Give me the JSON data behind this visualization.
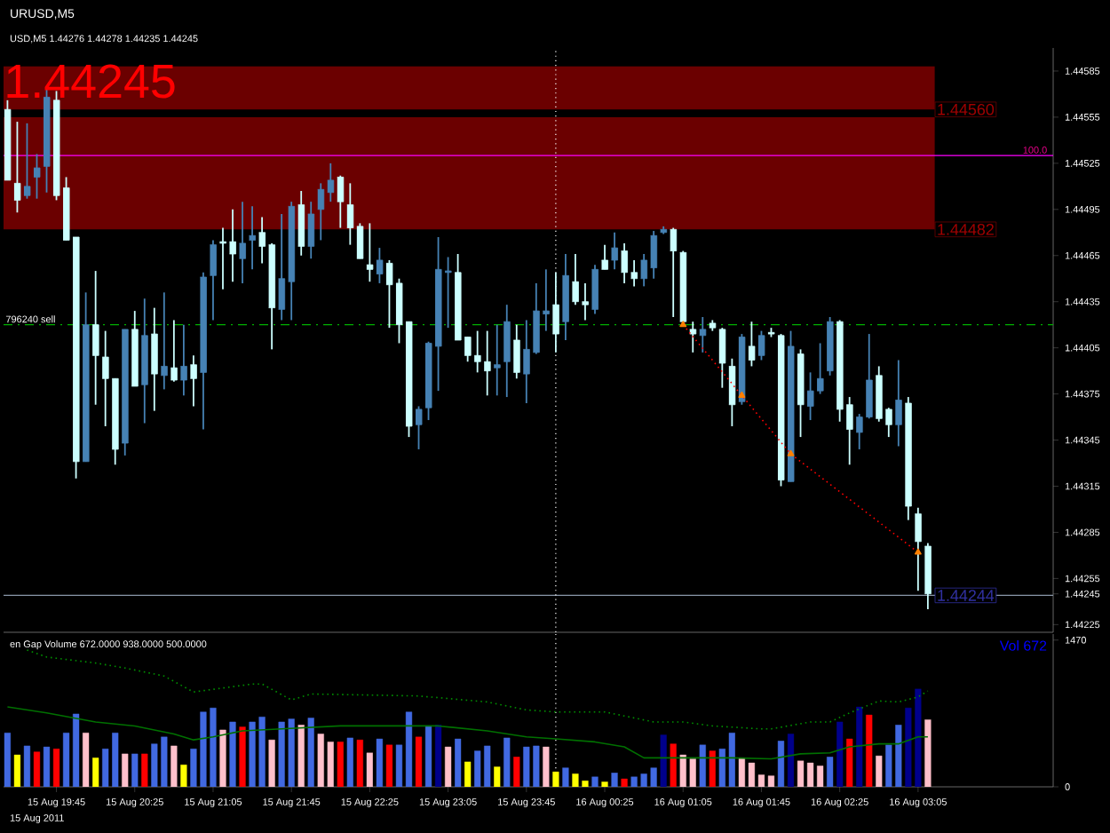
{
  "chart_data": [
    {
      "type": "candlestick",
      "title": "URUSD,M5",
      "subtitle": "USD,M5 1.44276 1.44278 1.44235 1.44245",
      "x": [
        "2011-08-15T19:20",
        "2011-08-15T19:25",
        "2011-08-15T19:30",
        "2011-08-15T19:35",
        "2011-08-15T19:40",
        "2011-08-15T19:45",
        "2011-08-15T19:50",
        "2011-08-15T19:55",
        "2011-08-15T20:00",
        "2011-08-15T20:05",
        "2011-08-15T20:10",
        "2011-08-15T20:15",
        "2011-08-15T20:20",
        "2011-08-15T20:25",
        "2011-08-15T20:30",
        "2011-08-15T20:35",
        "2011-08-15T20:40",
        "2011-08-15T20:45",
        "2011-08-15T20:50",
        "2011-08-15T20:55",
        "2011-08-15T21:00",
        "2011-08-15T21:05",
        "2011-08-15T21:10",
        "2011-08-15T21:15",
        "2011-08-15T21:20",
        "2011-08-15T21:25",
        "2011-08-15T21:30",
        "2011-08-15T21:35",
        "2011-08-15T21:40",
        "2011-08-15T21:45",
        "2011-08-15T21:50",
        "2011-08-15T21:55",
        "2011-08-15T22:00",
        "2011-08-15T22:05",
        "2011-08-15T22:10",
        "2011-08-15T22:15",
        "2011-08-15T22:20",
        "2011-08-15T22:25",
        "2011-08-15T22:30",
        "2011-08-15T22:35",
        "2011-08-15T22:40",
        "2011-08-15T22:45",
        "2011-08-15T22:50",
        "2011-08-15T22:55",
        "2011-08-15T23:00",
        "2011-08-15T23:05",
        "2011-08-15T23:10",
        "2011-08-15T23:15",
        "2011-08-15T23:20",
        "2011-08-15T23:25",
        "2011-08-15T23:30",
        "2011-08-15T23:35",
        "2011-08-15T23:40",
        "2011-08-15T23:45",
        "2011-08-15T23:50",
        "2011-08-15T23:55",
        "2011-08-16T00:00",
        "2011-08-16T00:05",
        "2011-08-16T00:10",
        "2011-08-16T00:15",
        "2011-08-16T00:20",
        "2011-08-16T00:25",
        "2011-08-16T00:30",
        "2011-08-16T00:35",
        "2011-08-16T00:40",
        "2011-08-16T00:45",
        "2011-08-16T00:50",
        "2011-08-16T00:55",
        "2011-08-16T01:00",
        "2011-08-16T01:05",
        "2011-08-16T01:10",
        "2011-08-16T01:15",
        "2011-08-16T01:20",
        "2011-08-16T01:25",
        "2011-08-16T01:30",
        "2011-08-16T01:35",
        "2011-08-16T01:40",
        "2011-08-16T01:45",
        "2011-08-16T01:50",
        "2011-08-16T01:55",
        "2011-08-16T02:00",
        "2011-08-16T02:05",
        "2011-08-16T02:10",
        "2011-08-16T02:15",
        "2011-08-16T02:20",
        "2011-08-16T02:25",
        "2011-08-16T02:30",
        "2011-08-16T02:35",
        "2011-08-16T02:40",
        "2011-08-16T02:45",
        "2011-08-16T02:50",
        "2011-08-16T02:55",
        "2011-08-16T03:00",
        "2011-08-16T03:05",
        "2011-08-16T03:10"
      ],
      "ohlc": [
        [
          1.4456,
          1.44566,
          1.44514,
          1.44514
        ],
        [
          1.44512,
          1.44552,
          1.44493,
          1.44501
        ],
        [
          1.44504,
          1.44551,
          1.44502,
          1.4451
        ],
        [
          1.44516,
          1.44531,
          1.44502,
          1.44522
        ],
        [
          1.44523,
          1.44574,
          1.44506,
          1.44568
        ],
        [
          1.44566,
          1.44572,
          1.44501,
          1.44504
        ],
        [
          1.44509,
          1.44516,
          1.44475,
          1.44475
        ],
        [
          1.44477,
          1.44477,
          1.4432,
          1.44331
        ],
        [
          1.44331,
          1.44441,
          1.44331,
          1.4442
        ],
        [
          1.4442,
          1.44455,
          1.44368,
          1.444
        ],
        [
          1.44399,
          1.44416,
          1.44354,
          1.44385
        ],
        [
          1.44385,
          1.44385,
          1.44329,
          1.44339
        ],
        [
          1.44343,
          1.44417,
          1.44335,
          1.44417
        ],
        [
          1.44417,
          1.44429,
          1.4438,
          1.4438
        ],
        [
          1.44381,
          1.44437,
          1.44356,
          1.44413
        ],
        [
          1.44414,
          1.44431,
          1.44364,
          1.44388
        ],
        [
          1.44387,
          1.44441,
          1.44378,
          1.44393
        ],
        [
          1.44392,
          1.44423,
          1.44383,
          1.44384
        ],
        [
          1.44384,
          1.4442,
          1.44374,
          1.44393
        ],
        [
          1.44394,
          1.444,
          1.44367,
          1.44385
        ],
        [
          1.44389,
          1.44454,
          1.44352,
          1.44451
        ],
        [
          1.44452,
          1.44475,
          1.44423,
          1.44472
        ],
        [
          1.44474,
          1.44483,
          1.44443,
          1.44473
        ],
        [
          1.44474,
          1.44495,
          1.44448,
          1.44466
        ],
        [
          1.44463,
          1.445,
          1.44447,
          1.44473
        ],
        [
          1.44475,
          1.44497,
          1.44456,
          1.44478
        ],
        [
          1.4448,
          1.4449,
          1.4446,
          1.44471
        ],
        [
          1.44472,
          1.44473,
          1.44404,
          1.44431
        ],
        [
          1.4443,
          1.44492,
          1.44423,
          1.4445
        ],
        [
          1.44448,
          1.445,
          1.44423,
          1.44497
        ],
        [
          1.44498,
          1.44507,
          1.44465,
          1.44471
        ],
        [
          1.44471,
          1.445,
          1.44463,
          1.44492
        ],
        [
          1.44495,
          1.44512,
          1.44475,
          1.44508
        ],
        [
          1.44506,
          1.44525,
          1.445,
          1.44514
        ],
        [
          1.44516,
          1.44517,
          1.44483,
          1.445
        ],
        [
          1.44498,
          1.44512,
          1.44472,
          1.44483
        ],
        [
          1.44484,
          1.44486,
          1.44463,
          1.44463
        ],
        [
          1.44459,
          1.44486,
          1.44448,
          1.44456
        ],
        [
          1.44453,
          1.4447,
          1.44447,
          1.44462
        ],
        [
          1.4446,
          1.44462,
          1.44418,
          1.44446
        ],
        [
          1.44447,
          1.4445,
          1.44408,
          1.4442
        ],
        [
          1.44422,
          1.44422,
          1.44347,
          1.44354
        ],
        [
          1.44355,
          1.44367,
          1.44339,
          1.44365
        ],
        [
          1.44366,
          1.44409,
          1.44358,
          1.44408
        ],
        [
          1.44406,
          1.44477,
          1.44377,
          1.44456
        ],
        [
          1.44454,
          1.44464,
          1.44418,
          1.44455
        ],
        [
          1.44454,
          1.44466,
          1.4441,
          1.4441
        ],
        [
          1.44412,
          1.44412,
          1.44396,
          1.444
        ],
        [
          1.444,
          1.44416,
          1.44389,
          1.44396
        ],
        [
          1.44396,
          1.44416,
          1.44374,
          1.4439
        ],
        [
          1.44392,
          1.4442,
          1.44374,
          1.44394
        ],
        [
          1.44396,
          1.44433,
          1.44373,
          1.44422
        ],
        [
          1.4441,
          1.4442,
          1.44385,
          1.44389
        ],
        [
          1.44388,
          1.44423,
          1.44369,
          1.44404
        ],
        [
          1.44402,
          1.44447,
          1.44401,
          1.44429
        ],
        [
          1.44427,
          1.44456,
          1.44416,
          1.44429
        ],
        [
          1.44433,
          1.44454,
          1.44402,
          1.44414
        ],
        [
          1.44422,
          1.44466,
          1.4441,
          1.44452
        ],
        [
          1.44448,
          1.44466,
          1.44433,
          1.44435
        ],
        [
          1.44435,
          1.44447,
          1.44423,
          1.44433
        ],
        [
          1.4443,
          1.44459,
          1.44427,
          1.44456
        ],
        [
          1.44462,
          1.44472,
          1.44456,
          1.44456
        ],
        [
          1.44462,
          1.4448,
          1.44456,
          1.4447
        ],
        [
          1.44468,
          1.44473,
          1.44447,
          1.44454
        ],
        [
          1.44454,
          1.44462,
          1.44445,
          1.4445
        ],
        [
          1.4445,
          1.44466,
          1.44445,
          1.44462
        ],
        [
          1.44457,
          1.44481,
          1.4445,
          1.44478
        ],
        [
          1.4448,
          1.44484,
          1.44479,
          1.44482
        ],
        [
          1.44482,
          1.44483,
          1.44425,
          1.44468
        ],
        [
          1.44467,
          1.44468,
          1.4442,
          1.44422
        ],
        [
          1.44417,
          1.44422,
          1.44402,
          1.44414
        ],
        [
          1.44413,
          1.44425,
          1.44402,
          1.44417
        ],
        [
          1.44421,
          1.44423,
          1.44416,
          1.44418
        ],
        [
          1.44417,
          1.44418,
          1.44379,
          1.44395
        ],
        [
          1.44393,
          1.44398,
          1.44354,
          1.44368
        ],
        [
          1.4437,
          1.44414,
          1.44368,
          1.44412
        ],
        [
          1.44406,
          1.44422,
          1.44393,
          1.44397
        ],
        [
          1.444,
          1.44416,
          1.44397,
          1.44413
        ],
        [
          1.44415,
          1.44418,
          1.44412,
          1.44414
        ],
        [
          1.44413,
          1.44414,
          1.44315,
          1.44319
        ],
        [
          1.44318,
          1.44416,
          1.44318,
          1.44406
        ],
        [
          1.44401,
          1.44404,
          1.44347,
          1.44368
        ],
        [
          1.44367,
          1.44389,
          1.44358,
          1.44377
        ],
        [
          1.44377,
          1.44408,
          1.44375,
          1.44385
        ],
        [
          1.4439,
          1.44425,
          1.44387,
          1.44422
        ],
        [
          1.44422,
          1.44423,
          1.44357,
          1.44365
        ],
        [
          1.44368,
          1.44373,
          1.44329,
          1.44352
        ],
        [
          1.4435,
          1.44362,
          1.44339,
          1.4436
        ],
        [
          1.4436,
          1.44414,
          1.44359,
          1.44384
        ],
        [
          1.44387,
          1.44393,
          1.44357,
          1.44359
        ],
        [
          1.44365,
          1.44366,
          1.44347,
          1.44355
        ],
        [
          1.44355,
          1.44397,
          1.44341,
          1.44371
        ],
        [
          1.44369,
          1.44373,
          1.44293,
          1.44302
        ],
        [
          1.44297,
          1.44301,
          1.44247,
          1.44279
        ],
        [
          1.44276,
          1.44278,
          1.44235,
          1.44245
        ]
      ],
      "colors": [
        "#ccffff",
        "#ccffff",
        "#4682b4",
        "#4682b4",
        "#4682b4",
        "#ccffff",
        "#ccffff",
        "#ccffff",
        "#4682b4",
        "#ccffff",
        "#ccffff",
        "#ccffff",
        "#4682b4",
        "#ccffff",
        "#4682b4",
        "#ccffff",
        "#4682b4",
        "#ccffff",
        "#4682b4",
        "#ccffff",
        "#4682b4",
        "#4682b4",
        "#ccffff",
        "#ccffff",
        "#4682b4",
        "#4682b4",
        "#ccffff",
        "#ccffff",
        "#4682b4",
        "#4682b4",
        "#ccffff",
        "#4682b4",
        "#4682b4",
        "#4682b4",
        "#ccffff",
        "#ccffff",
        "#ccffff",
        "#ccffff",
        "#4682b4",
        "#ccffff",
        "#ccffff",
        "#ccffff",
        "#4682b4",
        "#4682b4",
        "#4682b4",
        "#4682b4",
        "#ccffff",
        "#ccffff",
        "#ccffff",
        "#ccffff",
        "#4682b4",
        "#4682b4",
        "#ccffff",
        "#4682b4",
        "#4682b4",
        "#4682b4",
        "#ccffff",
        "#4682b4",
        "#ccffff",
        "#ccffff",
        "#4682b4",
        "#ccffff",
        "#4682b4",
        "#ccffff",
        "#ccffff",
        "#4682b4",
        "#4682b4",
        "#4682b4",
        "#ccffff",
        "#ccffff",
        "#ccffff",
        "#4682b4",
        "#ccffff",
        "#ccffff",
        "#ccffff",
        "#4682b4",
        "#ccffff",
        "#4682b4",
        "#ccffff",
        "#ccffff",
        "#4682b4",
        "#ccffff",
        "#4682b4",
        "#4682b4",
        "#4682b4",
        "#ccffff",
        "#ccffff",
        "#4682b4",
        "#4682b4",
        "#ccffff",
        "#ccffff",
        "#4682b4",
        "#ccffff",
        "#ccffff",
        "#ccffff"
      ],
      "series": [
        {
          "type": "line",
          "color": "#ff0000",
          "line_style": "dotted",
          "marker": "triangle",
          "x": [
            "2011-08-16T01:05",
            "2011-08-16T01:35",
            "2011-08-16T02:00",
            "2011-08-16T03:05"
          ],
          "values": [
            1.4442,
            1.44374,
            1.44336,
            1.44272
          ]
        }
      ],
      "xlim": [
        "2011-08-15T19:18",
        "2011-08-16T04:14"
      ],
      "ylim": [
        1.4422,
        1.446
      ],
      "yticks": [
        1.44225,
        {
          "value": 1.44245,
          "label": "1.44245"
        },
        1.44255,
        1.44285,
        1.44315,
        1.44345,
        1.44375,
        1.44405,
        1.44435,
        1.44465,
        1.44495,
        1.44525,
        1.44555,
        1.44585
      ],
      "tick_labels": "y",
      "bands": [
        {
          "axis": "y",
          "from": 1.4456,
          "to": 1.44588,
          "label": "1.44560",
          "color": "#6b0000"
        },
        {
          "axis": "y",
          "from": 1.44482,
          "to": 1.44555,
          "label": "1.44482",
          "color": "#6b0000"
        }
      ],
      "ref_lines": [
        {
          "axis": "y",
          "value": 1.4442,
          "label": "796240 sell",
          "color": "#00b000",
          "line_style": "dashed"
        },
        {
          "axis": "y",
          "value": 1.4453,
          "color": "#ff00ff",
          "line_style": "solid"
        },
        {
          "axis": "y",
          "value": 1.44244,
          "label": "1.44244",
          "color": "#8896a8",
          "line_style": "solid"
        },
        {
          "axis": "x",
          "value": "2011-08-16T00:00",
          "color": "#ffffff",
          "line_style": "dotted"
        }
      ],
      "annotations": [
        "1.44245",
        {
          "text": "100.0",
          "x": "2011-08-16T04:12",
          "y": 1.4453
        }
      ]
    },
    {
      "type": "bar",
      "title": "en Gap Volume 672.0000 938.0000 500.0000",
      "x": [
        "2011-08-15T19:20",
        "2011-08-15T19:25",
        "2011-08-15T19:30",
        "2011-08-15T19:35",
        "2011-08-15T19:40",
        "2011-08-15T19:45",
        "2011-08-15T19:50",
        "2011-08-15T19:55",
        "2011-08-15T20:00",
        "2011-08-15T20:05",
        "2011-08-15T20:10",
        "2011-08-15T20:15",
        "2011-08-15T20:20",
        "2011-08-15T20:25",
        "2011-08-15T20:30",
        "2011-08-15T20:35",
        "2011-08-15T20:40",
        "2011-08-15T20:45",
        "2011-08-15T20:50",
        "2011-08-15T20:55",
        "2011-08-15T21:00",
        "2011-08-15T21:05",
        "2011-08-15T21:10",
        "2011-08-15T21:15",
        "2011-08-15T21:20",
        "2011-08-15T21:25",
        "2011-08-15T21:30",
        "2011-08-15T21:35",
        "2011-08-15T21:40",
        "2011-08-15T21:45",
        "2011-08-15T21:50",
        "2011-08-15T21:55",
        "2011-08-15T22:00",
        "2011-08-15T22:05",
        "2011-08-15T22:10",
        "2011-08-15T22:15",
        "2011-08-15T22:20",
        "2011-08-15T22:25",
        "2011-08-15T22:30",
        "2011-08-15T22:35",
        "2011-08-15T22:40",
        "2011-08-15T22:45",
        "2011-08-15T22:50",
        "2011-08-15T22:55",
        "2011-08-15T23:00",
        "2011-08-15T23:05",
        "2011-08-15T23:10",
        "2011-08-15T23:15",
        "2011-08-15T23:20",
        "2011-08-15T23:25",
        "2011-08-15T23:30",
        "2011-08-15T23:35",
        "2011-08-15T23:40",
        "2011-08-15T23:45",
        "2011-08-15T23:50",
        "2011-08-15T23:55",
        "2011-08-16T00:00",
        "2011-08-16T00:05",
        "2011-08-16T00:10",
        "2011-08-16T00:15",
        "2011-08-16T00:20",
        "2011-08-16T00:25",
        "2011-08-16T00:30",
        "2011-08-16T00:35",
        "2011-08-16T00:40",
        "2011-08-16T00:45",
        "2011-08-16T00:50",
        "2011-08-16T00:55",
        "2011-08-16T01:00",
        "2011-08-16T01:05",
        "2011-08-16T01:10",
        "2011-08-16T01:15",
        "2011-08-16T01:20",
        "2011-08-16T01:25",
        "2011-08-16T01:30",
        "2011-08-16T01:35",
        "2011-08-16T01:40",
        "2011-08-16T01:45",
        "2011-08-16T01:50",
        "2011-08-16T01:55",
        "2011-08-16T02:00",
        "2011-08-16T02:05",
        "2011-08-16T02:10",
        "2011-08-16T02:15",
        "2011-08-16T02:20",
        "2011-08-16T02:25",
        "2011-08-16T02:30",
        "2011-08-16T02:35",
        "2011-08-16T02:40",
        "2011-08-16T02:45",
        "2011-08-16T02:50",
        "2011-08-16T02:55",
        "2011-08-16T03:00",
        "2011-08-16T03:05",
        "2011-08-16T03:10"
      ],
      "series": [
        {
          "type": "bar",
          "values": [
            540,
            320,
            410,
            350,
            400,
            380,
            540,
            730,
            540,
            290,
            380,
            540,
            330,
            330,
            330,
            430,
            500,
            410,
            220,
            380,
            750,
            790,
            570,
            650,
            600,
            650,
            700,
            470,
            650,
            680,
            620,
            690,
            530,
            450,
            450,
            490,
            470,
            340,
            480,
            420,
            420,
            750,
            500,
            610,
            620,
            400,
            480,
            250,
            360,
            410,
            200,
            490,
            300,
            400,
            410,
            400,
            150,
            190,
            130,
            60,
            100,
            50,
            140,
            80,
            100,
            130,
            190,
            520,
            430,
            320,
            280,
            420,
            360,
            380,
            540,
            290,
            240,
            120,
            110,
            460,
            530,
            260,
            240,
            210,
            300,
            650,
            480,
            800,
            720,
            310,
            420,
            620,
            790,
            980,
            672
          ],
          "colors": [
            "#4169e1",
            "#ffff00",
            "#4169e1",
            "#ff0000",
            "#4169e1",
            "#ff0000",
            "#4169e1",
            "#4169e1",
            "#ffc0cb",
            "#ffff00",
            "#4169e1",
            "#4169e1",
            "#ffc0cb",
            "#4169e1",
            "#ff0000",
            "#4169e1",
            "#4169e1",
            "#ffc0cb",
            "#ffff00",
            "#4169e1",
            "#4169e1",
            "#4169e1",
            "#ffc0cb",
            "#4169e1",
            "#ff0000",
            "#4169e1",
            "#4169e1",
            "#ffc0cb",
            "#4169e1",
            "#4169e1",
            "#ffc0cb",
            "#4169e1",
            "#ffc0cb",
            "#ffc0cb",
            "#ff0000",
            "#4169e1",
            "#ff0000",
            "#ffc0cb",
            "#4169e1",
            "#ff0000",
            "#4169e1",
            "#4169e1",
            "#ff0000",
            "#4169e1",
            "#00008b",
            "#ffc0cb",
            "#4169e1",
            "#ffff00",
            "#4169e1",
            "#4169e1",
            "#ffff00",
            "#4169e1",
            "#ff0000",
            "#4169e1",
            "#4169e1",
            "#ffc0cb",
            "#ffff00",
            "#4169e1",
            "#ffff00",
            "#ffff00",
            "#4169e1",
            "#ffff00",
            "#4169e1",
            "#ff0000",
            "#4169e1",
            "#4169e1",
            "#4169e1",
            "#00008b",
            "#ff0000",
            "#ffc0cb",
            "#ffc0cb",
            "#4169e1",
            "#ff0000",
            "#4169e1",
            "#4169e1",
            "#ffc0cb",
            "#ffc0cb",
            "#ffc0cb",
            "#ffc0cb",
            "#4169e1",
            "#00008b",
            "#ffc0cb",
            "#ffc0cb",
            "#ffc0cb",
            "#4169e1",
            "#00008b",
            "#ff0000",
            "#00008b",
            "#ff0000",
            "#ffc0cb",
            "#4169e1",
            "#4169e1",
            "#00008b",
            "#00008b",
            "#ffc0cb"
          ]
        },
        {
          "type": "line",
          "color": "#007000",
          "line_style": "solid",
          "x": [
            "2011-08-15T19:20",
            "2011-08-15T19:40",
            "2011-08-15T20:05",
            "2011-08-15T20:25",
            "2011-08-15T20:45",
            "2011-08-15T20:55",
            "2011-08-15T21:05",
            "2011-08-15T21:20",
            "2011-08-15T21:40",
            "2011-08-15T22:10",
            "2011-08-15T23:00",
            "2011-08-15T23:25",
            "2011-08-15T23:45",
            "2011-08-16T00:00",
            "2011-08-16T00:20",
            "2011-08-16T00:35",
            "2011-08-16T00:45",
            "2011-08-16T01:30",
            "2011-08-16T01:50",
            "2011-08-16T02:05",
            "2011-08-16T02:20",
            "2011-08-16T02:30",
            "2011-08-16T02:45",
            "2011-08-16T02:55",
            "2011-08-16T03:05",
            "2011-08-16T03:10"
          ],
          "values": [
            800,
            740,
            650,
            610,
            530,
            470,
            500,
            560,
            580,
            610,
            610,
            560,
            500,
            480,
            450,
            400,
            290,
            290,
            280,
            330,
            340,
            400,
            430,
            430,
            500,
            500
          ]
        },
        {
          "type": "line",
          "color": "#009000",
          "line_style": "dotted",
          "x": [
            "2011-08-15T19:30",
            "2011-08-15T19:40",
            "2011-08-15T20:05",
            "2011-08-15T20:20",
            "2011-08-15T20:40",
            "2011-08-15T20:55",
            "2011-08-15T21:25",
            "2011-08-15T21:30",
            "2011-08-15T21:45",
            "2011-08-15T21:55",
            "2011-08-15T22:50",
            "2011-08-15T23:25",
            "2011-08-15T23:45",
            "2011-08-16T00:00",
            "2011-08-16T00:25",
            "2011-08-16T00:50",
            "2011-08-16T01:05",
            "2011-08-16T01:20",
            "2011-08-16T01:45",
            "2011-08-16T01:50",
            "2011-08-16T02:10",
            "2011-08-16T02:20",
            "2011-08-16T02:30",
            "2011-08-16T02:45",
            "2011-08-16T02:55",
            "2011-08-16T03:05",
            "2011-08-16T03:10"
          ],
          "values": [
            1370,
            1300,
            1240,
            1190,
            1110,
            950,
            1030,
            1030,
            870,
            930,
            910,
            850,
            770,
            750,
            750,
            650,
            650,
            610,
            580,
            580,
            650,
            650,
            740,
            860,
            850,
            900,
            960
          ]
        }
      ],
      "xlim": [
        "2011-08-15T19:18",
        "2011-08-16T04:14"
      ],
      "ylim": [
        0,
        1530
      ],
      "yticks": [
        0,
        1470
      ],
      "xticks": [
        {
          "value": "2011-08-15T19:45",
          "label": "15 Aug 19:45"
        },
        {
          "value": "2011-08-15T20:25",
          "label": "15 Aug 20:25"
        },
        {
          "value": "2011-08-15T21:05",
          "label": "15 Aug 21:05"
        },
        {
          "value": "2011-08-15T21:45",
          "label": "15 Aug 21:45"
        },
        {
          "value": "2011-08-15T22:25",
          "label": "15 Aug 22:25"
        },
        {
          "value": "2011-08-15T23:05",
          "label": "15 Aug 23:05"
        },
        {
          "value": "2011-08-15T23:45",
          "label": "15 Aug 23:45"
        },
        {
          "value": "2011-08-16T00:25",
          "label": "16 Aug 00:25"
        },
        {
          "value": "2011-08-16T01:05",
          "label": "16 Aug 01:05"
        },
        {
          "value": "2011-08-16T01:45",
          "label": "16 Aug 01:45"
        },
        {
          "value": "2011-08-16T02:25",
          "label": "16 Aug 02:25"
        },
        {
          "value": "2011-08-16T03:05",
          "label": "16 Aug 03:05"
        }
      ],
      "ref_lines": [
        {
          "axis": "x",
          "value": "2011-08-16T00:00",
          "color": "#ffffff",
          "line_style": "dotted"
        }
      ],
      "annotations": [
        "Vol  672",
        "15 Aug 2011"
      ]
    }
  ]
}
